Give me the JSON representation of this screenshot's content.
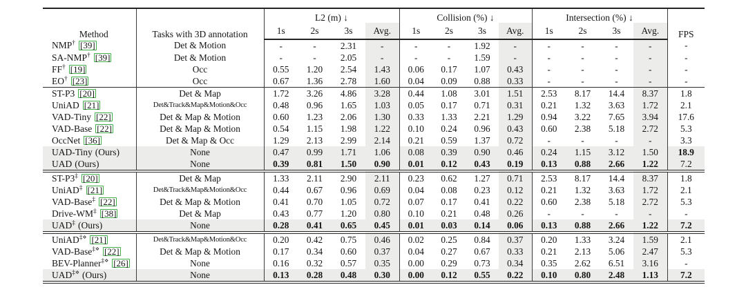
{
  "colors": {
    "citation_box": "#3fae49",
    "shading": "#ececea",
    "rule": "#232323"
  },
  "header": {
    "method": "Method",
    "tasks": "Tasks with 3D annotation",
    "metric_groups": [
      "L2 (m) ↓",
      "Collision (%) ↓",
      "Intersection (%) ↓"
    ],
    "subcols": [
      "1s",
      "2s",
      "3s",
      "Avg."
    ],
    "fps": "FPS"
  },
  "groups": [
    {
      "rows": [
        {
          "method": "NMP",
          "sup": "†",
          "cite": "[39]",
          "suffix": "",
          "ours": false,
          "tasks": "Det & Motion",
          "small_tasks": false,
          "l2": [
            "-",
            "-",
            "2.31",
            "-"
          ],
          "collision": [
            "-",
            "-",
            "1.92",
            "-"
          ],
          "intersection": [
            "-",
            "-",
            "-",
            "-"
          ],
          "fps": "-",
          "bold": {
            "l2": false,
            "collision": false,
            "intersection": false,
            "fps": false
          }
        },
        {
          "method": "SA-NMP",
          "sup": "†",
          "cite": "[39]",
          "suffix": "",
          "ours": false,
          "tasks": "Det & Motion",
          "small_tasks": false,
          "l2": [
            "-",
            "-",
            "2.05",
            "-"
          ],
          "collision": [
            "-",
            "-",
            "1.59",
            "-"
          ],
          "intersection": [
            "-",
            "-",
            "-",
            "-"
          ],
          "fps": "-",
          "bold": {
            "l2": false,
            "collision": false,
            "intersection": false,
            "fps": false
          }
        },
        {
          "method": "FF",
          "sup": "†",
          "cite": "[19]",
          "suffix": "",
          "ours": false,
          "tasks": "Occ",
          "small_tasks": false,
          "l2": [
            "0.55",
            "1.20",
            "2.54",
            "1.43"
          ],
          "collision": [
            "0.06",
            "0.17",
            "1.07",
            "0.43"
          ],
          "intersection": [
            "-",
            "-",
            "-",
            "-"
          ],
          "fps": "-",
          "bold": {
            "l2": false,
            "collision": false,
            "intersection": false,
            "fps": false
          }
        },
        {
          "method": "EO",
          "sup": "†",
          "cite": "[23]",
          "suffix": "",
          "ours": false,
          "tasks": "Occ",
          "small_tasks": false,
          "l2": [
            "0.67",
            "1.36",
            "2.78",
            "1.60"
          ],
          "collision": [
            "0.04",
            "0.09",
            "0.88",
            "0.33"
          ],
          "intersection": [
            "-",
            "-",
            "-",
            "-"
          ],
          "fps": "-",
          "bold": {
            "l2": false,
            "collision": false,
            "intersection": false,
            "fps": false
          }
        }
      ]
    },
    {
      "rows": [
        {
          "method": "ST-P3",
          "sup": "",
          "cite": "[20]",
          "suffix": "",
          "ours": false,
          "tasks": "Det & Map",
          "small_tasks": false,
          "l2": [
            "1.72",
            "3.26",
            "4.86",
            "3.28"
          ],
          "collision": [
            "0.44",
            "1.08",
            "3.01",
            "1.51"
          ],
          "intersection": [
            "2.53",
            "8.17",
            "14.4",
            "8.37"
          ],
          "fps": "1.8",
          "bold": {
            "l2": false,
            "collision": false,
            "intersection": false,
            "fps": false
          }
        },
        {
          "method": "UniAD",
          "sup": "",
          "cite": "[21]",
          "suffix": "",
          "ours": false,
          "tasks": "Det&Track&Map&Motion&Occ",
          "small_tasks": true,
          "l2": [
            "0.48",
            "0.96",
            "1.65",
            "1.03"
          ],
          "collision": [
            "0.05",
            "0.17",
            "0.71",
            "0.31"
          ],
          "intersection": [
            "0.21",
            "1.32",
            "3.63",
            "1.72"
          ],
          "fps": "2.1",
          "bold": {
            "l2": false,
            "collision": false,
            "intersection": false,
            "fps": false
          }
        },
        {
          "method": "VAD-Tiny",
          "sup": "",
          "cite": "[22]",
          "suffix": "",
          "ours": false,
          "tasks": "Det & Map & Motion",
          "small_tasks": false,
          "l2": [
            "0.60",
            "1.23",
            "2.06",
            "1.30"
          ],
          "collision": [
            "0.33",
            "1.33",
            "2.21",
            "1.29"
          ],
          "intersection": [
            "0.94",
            "3.22",
            "7.65",
            "3.94"
          ],
          "fps": "17.6",
          "bold": {
            "l2": false,
            "collision": false,
            "intersection": false,
            "fps": false
          }
        },
        {
          "method": "VAD-Base",
          "sup": "",
          "cite": "[22]",
          "suffix": "",
          "ours": false,
          "tasks": "Det & Map & Motion",
          "small_tasks": false,
          "l2": [
            "0.54",
            "1.15",
            "1.98",
            "1.22"
          ],
          "collision": [
            "0.10",
            "0.24",
            "0.96",
            "0.43"
          ],
          "intersection": [
            "0.60",
            "2.38",
            "5.18",
            "2.72"
          ],
          "fps": "5.3",
          "bold": {
            "l2": false,
            "collision": false,
            "intersection": false,
            "fps": false
          }
        },
        {
          "method": "OccNet",
          "sup": "",
          "cite": "[36]",
          "suffix": "",
          "ours": false,
          "tasks": "Det & Map & Occ",
          "small_tasks": false,
          "l2": [
            "1.29",
            "2.13",
            "2.99",
            "2.14"
          ],
          "collision": [
            "0.21",
            "0.59",
            "1.37",
            "0.72"
          ],
          "intersection": [
            "-",
            "-",
            "-",
            "-"
          ],
          "fps": "3.3",
          "bold": {
            "l2": false,
            "collision": false,
            "intersection": false,
            "fps": false
          }
        },
        {
          "method": "UAD-Tiny",
          "sup": "",
          "cite": "",
          "suffix": "(Ours)",
          "ours": true,
          "tasks": "None",
          "small_tasks": false,
          "l2": [
            "0.47",
            "0.99",
            "1.71",
            "1.06"
          ],
          "collision": [
            "0.08",
            "0.39",
            "0.90",
            "0.46"
          ],
          "intersection": [
            "0.24",
            "1.15",
            "3.12",
            "1.50"
          ],
          "fps": "18.9",
          "bold": {
            "l2": false,
            "collision": false,
            "intersection": false,
            "fps": true
          }
        },
        {
          "method": "UAD",
          "sup": "",
          "cite": "",
          "suffix": "(Ours)",
          "ours": true,
          "tasks": "None",
          "small_tasks": false,
          "l2": [
            "0.39",
            "0.81",
            "1.50",
            "0.90"
          ],
          "collision": [
            "0.01",
            "0.12",
            "0.43",
            "0.19"
          ],
          "intersection": [
            "0.13",
            "0.88",
            "2.66",
            "1.22"
          ],
          "fps": "7.2",
          "bold": {
            "l2": true,
            "collision": true,
            "intersection": true,
            "fps": false
          }
        }
      ]
    },
    {
      "rows": [
        {
          "method": "ST-P3",
          "sup": "‡",
          "cite": "[20]",
          "suffix": "",
          "ours": false,
          "tasks": "Det & Map",
          "small_tasks": false,
          "l2": [
            "1.33",
            "2.11",
            "2.90",
            "2.11"
          ],
          "collision": [
            "0.23",
            "0.62",
            "1.27",
            "0.71"
          ],
          "intersection": [
            "2.53",
            "8.17",
            "14.4",
            "8.37"
          ],
          "fps": "1.8",
          "bold": {
            "l2": false,
            "collision": false,
            "intersection": false,
            "fps": false
          }
        },
        {
          "method": "UniAD",
          "sup": "‡",
          "cite": "[21]",
          "suffix": "",
          "ours": false,
          "tasks": "Det&Track&Map&Motion&Occ",
          "small_tasks": true,
          "l2": [
            "0.44",
            "0.67",
            "0.96",
            "0.69"
          ],
          "collision": [
            "0.04",
            "0.08",
            "0.23",
            "0.12"
          ],
          "intersection": [
            "0.21",
            "1.32",
            "3.63",
            "1.72"
          ],
          "fps": "2.1",
          "bold": {
            "l2": false,
            "collision": false,
            "intersection": false,
            "fps": false
          }
        },
        {
          "method": "VAD-Base",
          "sup": "‡",
          "cite": "[22]",
          "suffix": "",
          "ours": false,
          "tasks": "Det & Map & Motion",
          "small_tasks": false,
          "l2": [
            "0.41",
            "0.70",
            "1.05",
            "0.72"
          ],
          "collision": [
            "0.07",
            "0.17",
            "0.41",
            "0.22"
          ],
          "intersection": [
            "0.60",
            "2.38",
            "5.18",
            "2.72"
          ],
          "fps": "5.3",
          "bold": {
            "l2": false,
            "collision": false,
            "intersection": false,
            "fps": false
          }
        },
        {
          "method": "Drive-WM",
          "sup": "‡",
          "cite": "[38]",
          "suffix": "",
          "ours": false,
          "tasks": "Det & Map",
          "small_tasks": false,
          "l2": [
            "0.43",
            "0.77",
            "1.20",
            "0.80"
          ],
          "collision": [
            "0.10",
            "0.21",
            "0.48",
            "0.26"
          ],
          "intersection": [
            "-",
            "-",
            "-",
            "-"
          ],
          "fps": "-",
          "bold": {
            "l2": false,
            "collision": false,
            "intersection": false,
            "fps": false
          }
        },
        {
          "method": "UAD",
          "sup": "‡",
          "cite": "",
          "suffix": "(Ours)",
          "ours": true,
          "tasks": "None",
          "small_tasks": false,
          "l2": [
            "0.28",
            "0.41",
            "0.65",
            "0.45"
          ],
          "collision": [
            "0.01",
            "0.03",
            "0.14",
            "0.06"
          ],
          "intersection": [
            "0.13",
            "0.88",
            "2.66",
            "1.22"
          ],
          "fps": "7.2",
          "bold": {
            "l2": true,
            "collision": true,
            "intersection": true,
            "fps": true
          }
        }
      ]
    },
    {
      "rows": [
        {
          "method": "UniAD",
          "sup": "‡⋄",
          "cite": "[21]",
          "suffix": "",
          "ours": false,
          "tasks": "Det&Track&Map&Motion&Occ",
          "small_tasks": true,
          "l2": [
            "0.20",
            "0.42",
            "0.75",
            "0.46"
          ],
          "collision": [
            "0.02",
            "0.25",
            "0.84",
            "0.37"
          ],
          "intersection": [
            "0.20",
            "1.33",
            "3.24",
            "1.59"
          ],
          "fps": "2.1",
          "bold": {
            "l2": false,
            "collision": false,
            "intersection": false,
            "fps": false
          }
        },
        {
          "method": "VAD-Base",
          "sup": "‡⋄",
          "cite": "[22]",
          "suffix": "",
          "ours": false,
          "tasks": "Det & Map & Motion",
          "small_tasks": false,
          "l2": [
            "0.17",
            "0.34",
            "0.60",
            "0.37"
          ],
          "collision": [
            "0.04",
            "0.27",
            "0.67",
            "0.33"
          ],
          "intersection": [
            "0.21",
            "2.13",
            "5.06",
            "2.47"
          ],
          "fps": "5.3",
          "bold": {
            "l2": false,
            "collision": false,
            "intersection": false,
            "fps": false
          }
        },
        {
          "method": "BEV-Planner",
          "sup": "‡⋄",
          "cite": "[26]",
          "suffix": "",
          "ours": false,
          "tasks": "None",
          "small_tasks": false,
          "l2": [
            "0.16",
            "0.32",
            "0.57",
            "0.35"
          ],
          "collision": [
            "0.00",
            "0.29",
            "0.73",
            "0.34"
          ],
          "intersection": [
            "0.35",
            "2.62",
            "6.51",
            "3.16"
          ],
          "fps": "-",
          "bold": {
            "l2": false,
            "collision": false,
            "intersection": false,
            "fps": false
          }
        },
        {
          "method": "UAD",
          "sup": "‡⋄",
          "cite": "",
          "suffix": "(Ours)",
          "ours": true,
          "tasks": "None",
          "small_tasks": false,
          "l2": [
            "0.13",
            "0.28",
            "0.48",
            "0.30"
          ],
          "collision": [
            "0.00",
            "0.12",
            "0.55",
            "0.22"
          ],
          "intersection": [
            "0.10",
            "0.80",
            "2.48",
            "1.13"
          ],
          "fps": "7.2",
          "bold": {
            "l2": true,
            "collision": true,
            "intersection": true,
            "fps": true
          }
        }
      ]
    }
  ]
}
